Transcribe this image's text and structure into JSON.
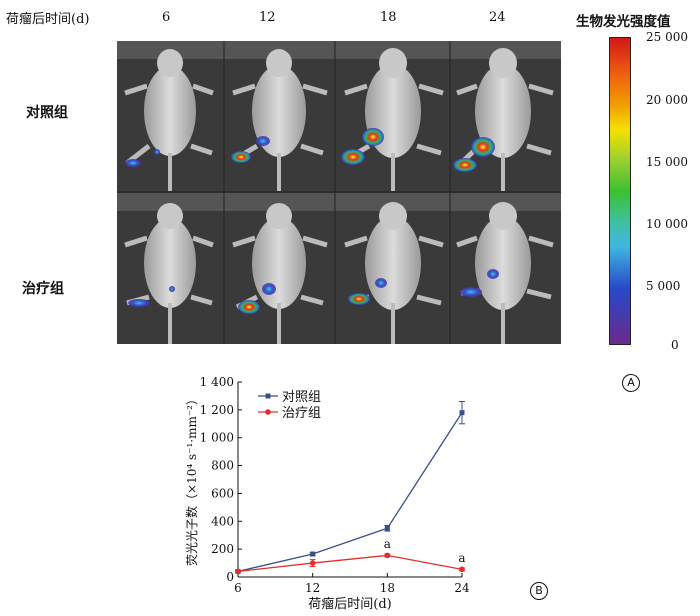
{
  "figure_A": {
    "corner_header": "荷瘤后时间(d)",
    "time_points": [
      "6",
      "12",
      "18",
      "24"
    ],
    "group_labels": [
      "对照组",
      "治疗组"
    ],
    "colorbar": {
      "title": "生物发光强度值",
      "ticks": [
        "25 000",
        "20 000",
        "15 000",
        "10 000",
        "5 000",
        "0"
      ],
      "colors": {
        "top": "#d01818",
        "upper": "#f0a000",
        "mid_high": "#f4e000",
        "mid": "#3cc030",
        "mid_low": "#40b8e0",
        "low": "#2848c8",
        "bottom": "#6a2a8c"
      }
    },
    "panel_label": "A"
  },
  "figure_B": {
    "panel_label": "B"
  },
  "chart_data": {
    "type": "line",
    "x": [
      6,
      12,
      18,
      24
    ],
    "xlabel": "荷瘤后时间(d)",
    "ylabel": "荧光光子数（×10⁴ s⁻¹·mm⁻²）",
    "xlim": [
      6,
      24
    ],
    "ylim": [
      0,
      1400
    ],
    "x_ticks": [
      "6",
      "12",
      "18",
      "24"
    ],
    "y_ticks": [
      "0",
      "200",
      "400",
      "600",
      "800",
      "1 000",
      "1 200",
      "1 400"
    ],
    "legend_position": "top-left",
    "series": [
      {
        "name": "对照组",
        "color": "#3a4e8c",
        "marker": "square",
        "values": [
          40,
          165,
          350,
          1180
        ],
        "errors": [
          5,
          10,
          20,
          80
        ]
      },
      {
        "name": "治疗组",
        "color": "#e0302c",
        "marker": "circle",
        "values": [
          40,
          100,
          155,
          55
        ],
        "errors": [
          5,
          25,
          10,
          10
        ]
      }
    ],
    "annotations": [
      {
        "x": 18,
        "text": "a"
      },
      {
        "x": 24,
        "text": "a"
      }
    ]
  }
}
